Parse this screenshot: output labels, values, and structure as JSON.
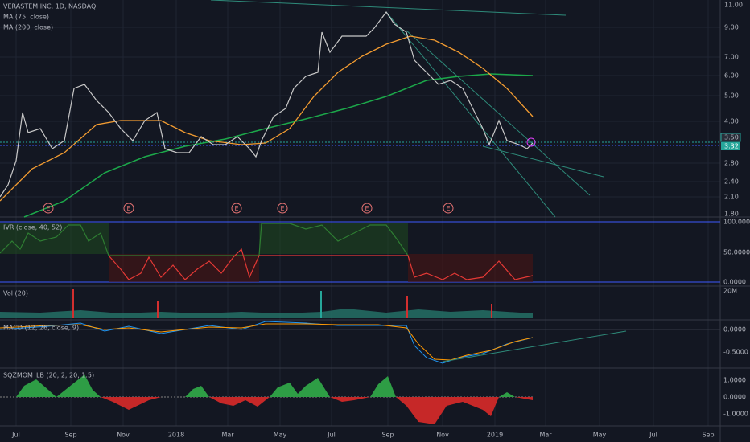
{
  "header": {
    "symbol": "VERASTEM INC, 1D, NASDAQ",
    "studies": [
      "MA (75, close)",
      "MA (200, close)"
    ]
  },
  "price_axis": [
    "11.00",
    "9.00",
    "7.00",
    "6.00",
    "5.00",
    "4.00",
    "3.50",
    "3.32",
    "2.80",
    "2.40",
    "2.10",
    "1.80"
  ],
  "earnings_markers": [
    "E",
    "E",
    "E",
    "E",
    "E",
    "E"
  ],
  "panes": [
    {
      "title": "IVR (close, 40, 52)",
      "axis": [
        "100.0000",
        "50.0000",
        "0.0000"
      ]
    },
    {
      "title": "Vol (20)",
      "axis": [
        "20M"
      ]
    },
    {
      "title": "MACD (12, 26, close, 9)",
      "axis": [
        "0.0000",
        "-0.5000"
      ]
    },
    {
      "title": "SQZMOM_LB (20, 2, 20, 1.5)",
      "axis": [
        "1.0000",
        "0.0000",
        "-1.0000"
      ]
    }
  ],
  "time_axis": [
    "Jul",
    "Sep",
    "Nov",
    "2018",
    "Mar",
    "May",
    "Jul",
    "Sep",
    "Nov",
    "2019",
    "Mar",
    "May",
    "Jul",
    "Sep"
  ]
}
